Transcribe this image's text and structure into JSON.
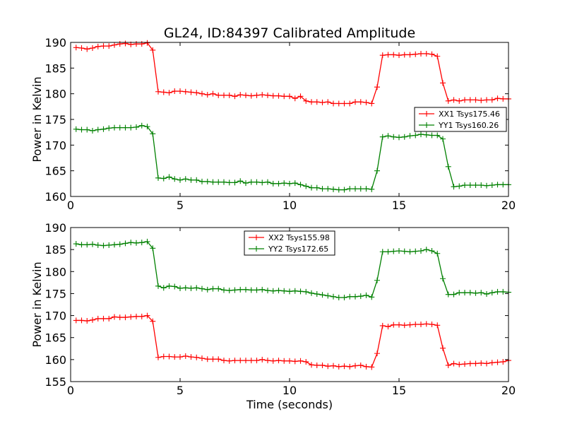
{
  "title": "GL24, ID:84397 Calibrated Amplitude",
  "colors": {
    "red": "#ff0000",
    "green": "#008000"
  },
  "chart_data": [
    {
      "type": "line",
      "ylabel": "Power in Kelvin",
      "xlabel": "",
      "xlim": [
        0,
        20
      ],
      "ylim": [
        160,
        190
      ],
      "xticks": [
        0,
        5,
        10,
        15,
        20
      ],
      "yticks": [
        160,
        165,
        170,
        175,
        180,
        185,
        190
      ],
      "legend_position": "center-right",
      "series": [
        {
          "name": "XX1 Tsys175.46",
          "color": "#ff0000",
          "x": [
            0.25,
            0.5,
            0.75,
            1.0,
            1.25,
            1.5,
            1.75,
            2.0,
            2.25,
            2.5,
            2.75,
            3.0,
            3.25,
            3.5,
            3.75,
            4.0,
            4.25,
            4.5,
            4.75,
            5.0,
            5.25,
            5.5,
            5.75,
            6.0,
            6.25,
            6.5,
            6.75,
            7.0,
            7.25,
            7.5,
            7.75,
            8.0,
            8.25,
            8.5,
            8.75,
            9.0,
            9.25,
            9.5,
            9.75,
            10.0,
            10.25,
            10.5,
            10.75,
            11.0,
            11.25,
            11.5,
            11.75,
            12.0,
            12.25,
            12.5,
            12.75,
            13.0,
            13.25,
            13.5,
            13.75,
            14.0,
            14.25,
            14.5,
            14.75,
            15.0,
            15.25,
            15.5,
            15.75,
            16.0,
            16.25,
            16.5,
            16.75,
            17.0,
            17.25,
            17.5,
            17.75,
            18.0,
            18.25,
            18.5,
            18.75,
            19.0,
            19.25,
            19.5,
            19.75,
            20.0
          ],
          "y": [
            189.0,
            188.9,
            188.7,
            188.9,
            189.2,
            189.3,
            189.3,
            189.5,
            189.7,
            189.8,
            189.6,
            189.7,
            189.7,
            189.9,
            188.5,
            180.4,
            180.3,
            180.2,
            180.5,
            180.5,
            180.4,
            180.3,
            180.2,
            180.0,
            179.8,
            180.0,
            179.7,
            179.7,
            179.7,
            179.5,
            179.8,
            179.7,
            179.6,
            179.7,
            179.8,
            179.7,
            179.6,
            179.6,
            179.5,
            179.5,
            179.1,
            179.5,
            178.6,
            178.4,
            178.4,
            178.3,
            178.4,
            178.1,
            178.1,
            178.1,
            178.1,
            178.4,
            178.4,
            178.3,
            178.1,
            181.3,
            187.5,
            187.6,
            187.6,
            187.5,
            187.6,
            187.6,
            187.7,
            187.8,
            187.8,
            187.7,
            187.3,
            182.1,
            178.6,
            178.8,
            178.6,
            178.8,
            178.8,
            178.8,
            178.7,
            178.8,
            178.8,
            179.1,
            179.0,
            179.0
          ]
        },
        {
          "name": "YY1 Tsys160.26",
          "color": "#008000",
          "x": [
            0.25,
            0.5,
            0.75,
            1.0,
            1.25,
            1.5,
            1.75,
            2.0,
            2.25,
            2.5,
            2.75,
            3.0,
            3.25,
            3.5,
            3.75,
            4.0,
            4.25,
            4.5,
            4.75,
            5.0,
            5.25,
            5.5,
            5.75,
            6.0,
            6.25,
            6.5,
            6.75,
            7.0,
            7.25,
            7.5,
            7.75,
            8.0,
            8.25,
            8.5,
            8.75,
            9.0,
            9.25,
            9.5,
            9.75,
            10.0,
            10.25,
            10.5,
            10.75,
            11.0,
            11.25,
            11.5,
            11.75,
            12.0,
            12.25,
            12.5,
            12.75,
            13.0,
            13.25,
            13.5,
            13.75,
            14.0,
            14.25,
            14.5,
            14.75,
            15.0,
            15.25,
            15.5,
            15.75,
            16.0,
            16.25,
            16.5,
            16.75,
            17.0,
            17.25,
            17.5,
            17.75,
            18.0,
            18.25,
            18.5,
            18.75,
            19.0,
            19.25,
            19.5,
            19.75,
            20.0
          ],
          "y": [
            173.1,
            173.0,
            173.0,
            172.8,
            173.0,
            173.1,
            173.3,
            173.4,
            173.4,
            173.4,
            173.4,
            173.5,
            173.8,
            173.6,
            172.2,
            163.6,
            163.5,
            163.8,
            163.4,
            163.2,
            163.4,
            163.2,
            163.2,
            162.9,
            162.9,
            162.8,
            162.8,
            162.8,
            162.7,
            162.7,
            163.0,
            162.6,
            162.8,
            162.8,
            162.7,
            162.8,
            162.5,
            162.5,
            162.6,
            162.5,
            162.6,
            162.3,
            162.0,
            161.7,
            161.7,
            161.5,
            161.5,
            161.4,
            161.3,
            161.3,
            161.5,
            161.5,
            161.5,
            161.5,
            161.4,
            165.0,
            171.6,
            171.8,
            171.6,
            171.5,
            171.6,
            171.8,
            171.9,
            172.1,
            172.0,
            171.9,
            171.9,
            171.2,
            165.8,
            161.9,
            162.0,
            162.2,
            162.2,
            162.2,
            162.2,
            162.1,
            162.2,
            162.3,
            162.3,
            162.3
          ]
        }
      ]
    },
    {
      "type": "line",
      "ylabel": "Power in Kelvin",
      "xlabel": "Time (seconds)",
      "xlim": [
        0,
        20
      ],
      "ylim": [
        155,
        190
      ],
      "xticks": [
        0,
        5,
        10,
        15,
        20
      ],
      "yticks": [
        155,
        160,
        165,
        170,
        175,
        180,
        185,
        190
      ],
      "legend_position": "upper-center",
      "series": [
        {
          "name": "XX2 Tsys155.98",
          "color": "#ff0000",
          "x": [
            0.25,
            0.5,
            0.75,
            1.0,
            1.25,
            1.5,
            1.75,
            2.0,
            2.25,
            2.5,
            2.75,
            3.0,
            3.25,
            3.5,
            3.75,
            4.0,
            4.25,
            4.5,
            4.75,
            5.0,
            5.25,
            5.5,
            5.75,
            6.0,
            6.25,
            6.5,
            6.75,
            7.0,
            7.25,
            7.5,
            7.75,
            8.0,
            8.25,
            8.5,
            8.75,
            9.0,
            9.25,
            9.5,
            9.75,
            10.0,
            10.25,
            10.5,
            10.75,
            11.0,
            11.25,
            11.5,
            11.75,
            12.0,
            12.25,
            12.5,
            12.75,
            13.0,
            13.25,
            13.5,
            13.75,
            14.0,
            14.25,
            14.5,
            14.75,
            15.0,
            15.25,
            15.5,
            15.75,
            16.0,
            16.25,
            16.5,
            16.75,
            17.0,
            17.25,
            17.5,
            17.75,
            18.0,
            18.25,
            18.5,
            18.75,
            19.0,
            19.25,
            19.5,
            19.75,
            20.0
          ],
          "y": [
            168.9,
            168.9,
            168.8,
            169.0,
            169.3,
            169.3,
            169.3,
            169.7,
            169.6,
            169.6,
            169.7,
            169.8,
            169.8,
            170.0,
            168.7,
            160.5,
            160.7,
            160.7,
            160.6,
            160.6,
            160.8,
            160.6,
            160.5,
            160.3,
            160.1,
            160.1,
            160.1,
            159.8,
            159.7,
            159.8,
            159.8,
            159.8,
            159.8,
            159.8,
            160.0,
            159.8,
            159.7,
            159.8,
            159.7,
            159.7,
            159.6,
            159.7,
            159.5,
            158.8,
            158.7,
            158.7,
            158.5,
            158.6,
            158.4,
            158.5,
            158.4,
            158.6,
            158.7,
            158.4,
            158.3,
            161.4,
            167.7,
            167.5,
            167.9,
            167.9,
            167.8,
            167.9,
            168.0,
            168.0,
            168.1,
            168.0,
            167.8,
            162.6,
            158.7,
            159.1,
            158.9,
            159.0,
            159.1,
            159.1,
            159.2,
            159.1,
            159.3,
            159.4,
            159.5,
            159.8
          ]
        },
        {
          "name": "YY2 Tsys172.65",
          "color": "#008000",
          "x": [
            0.25,
            0.5,
            0.75,
            1.0,
            1.25,
            1.5,
            1.75,
            2.0,
            2.25,
            2.5,
            2.75,
            3.0,
            3.25,
            3.5,
            3.75,
            4.0,
            4.25,
            4.5,
            4.75,
            5.0,
            5.25,
            5.5,
            5.75,
            6.0,
            6.25,
            6.5,
            6.75,
            7.0,
            7.25,
            7.5,
            7.75,
            8.0,
            8.25,
            8.5,
            8.75,
            9.0,
            9.25,
            9.5,
            9.75,
            10.0,
            10.25,
            10.5,
            10.75,
            11.0,
            11.25,
            11.5,
            11.75,
            12.0,
            12.25,
            12.5,
            12.75,
            13.0,
            13.25,
            13.5,
            13.75,
            14.0,
            14.25,
            14.5,
            14.75,
            15.0,
            15.25,
            15.5,
            15.75,
            16.0,
            16.25,
            16.5,
            16.75,
            17.0,
            17.25,
            17.5,
            17.75,
            18.0,
            18.25,
            18.5,
            18.75,
            19.0,
            19.25,
            19.5,
            19.75,
            20.0
          ],
          "y": [
            186.3,
            186.1,
            186.1,
            186.2,
            186.0,
            185.9,
            186.0,
            186.1,
            186.2,
            186.4,
            186.6,
            186.5,
            186.6,
            186.8,
            185.3,
            176.7,
            176.3,
            176.7,
            176.6,
            176.2,
            176.3,
            176.2,
            176.3,
            176.1,
            175.9,
            176.1,
            176.1,
            175.8,
            175.7,
            175.8,
            175.9,
            175.9,
            175.8,
            175.8,
            175.9,
            175.7,
            175.6,
            175.7,
            175.6,
            175.5,
            175.6,
            175.5,
            175.4,
            175.1,
            174.9,
            174.7,
            174.5,
            174.3,
            174.1,
            174.1,
            174.3,
            174.3,
            174.4,
            174.6,
            174.2,
            178.0,
            184.5,
            184.5,
            184.6,
            184.7,
            184.6,
            184.5,
            184.6,
            184.7,
            185.0,
            184.7,
            184.1,
            178.4,
            174.8,
            174.8,
            175.2,
            175.2,
            175.2,
            175.1,
            175.2,
            174.9,
            175.2,
            175.4,
            175.4,
            175.3
          ]
        }
      ]
    }
  ]
}
